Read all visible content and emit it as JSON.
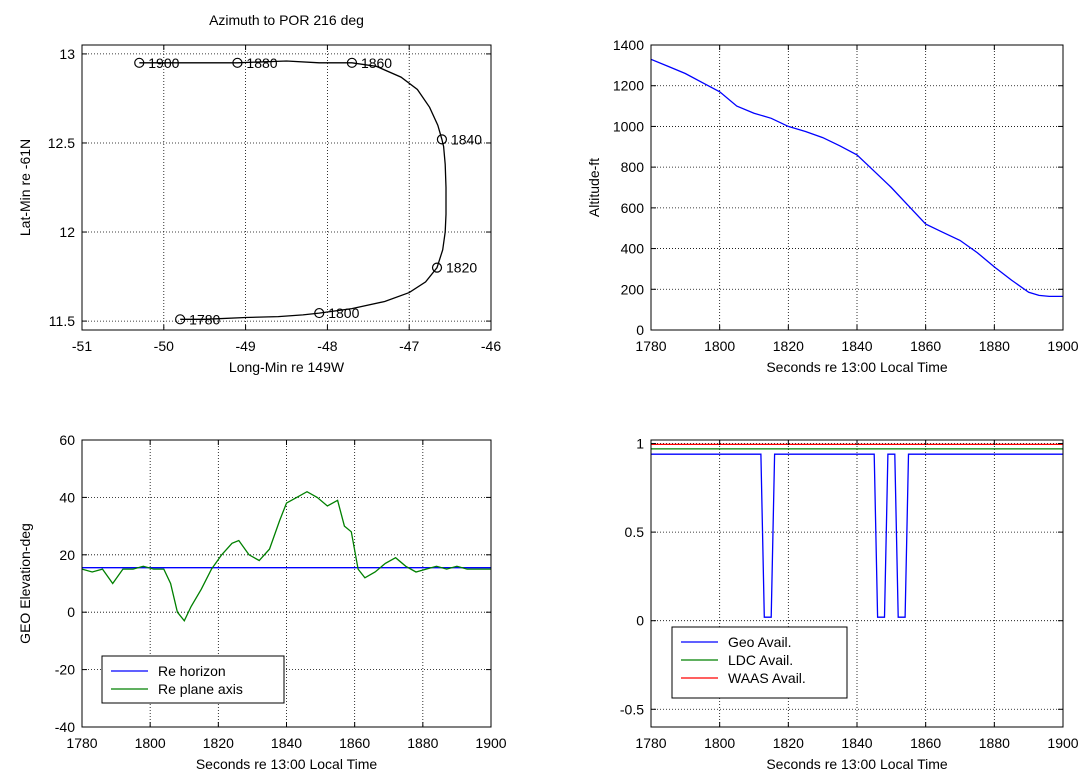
{
  "chart_data": [
    {
      "type": "line",
      "title": "Azimuth to POR 216 deg",
      "xlabel": "Long-Min re 149W",
      "ylabel": "Lat-Min re -61N",
      "xlim": [
        -51,
        -46
      ],
      "ylim": [
        11.45,
        13.05
      ],
      "xticks": [
        -51,
        -50,
        -49,
        -48,
        -47,
        -46
      ],
      "yticks": [
        11.5,
        12,
        12.5,
        13
      ],
      "xtick_labels": [
        "-51",
        "-50",
        "-49",
        "-48",
        "-47",
        "-46"
      ],
      "ytick_labels": [
        "11.5",
        "12",
        "12.5",
        "13"
      ],
      "grid": true,
      "series": [
        {
          "color": "#000000",
          "x": [
            -49.8,
            -49.5,
            -49.0,
            -48.6,
            -48.3,
            -48.1,
            -47.7,
            -47.3,
            -47.0,
            -46.8,
            -46.66,
            -46.59,
            -46.56,
            -46.55,
            -46.55,
            -46.56,
            -46.58,
            -46.6,
            -46.65,
            -46.75,
            -46.9,
            -47.1,
            -47.4,
            -47.7,
            -48.1,
            -48.5,
            -49.1,
            -49.8,
            -50.3
          ],
          "y": [
            11.51,
            11.51,
            11.52,
            11.525,
            11.535,
            11.545,
            11.57,
            11.61,
            11.66,
            11.72,
            11.8,
            11.9,
            12.0,
            12.1,
            12.25,
            12.38,
            12.48,
            12.52,
            12.6,
            12.7,
            12.8,
            12.87,
            12.93,
            12.95,
            12.95,
            12.96,
            12.95,
            12.95,
            12.95
          ]
        }
      ],
      "markers": [
        {
          "label": "1780",
          "x": -49.8,
          "y": 11.51
        },
        {
          "label": "1800",
          "x": -48.1,
          "y": 11.545
        },
        {
          "label": "1820",
          "x": -46.66,
          "y": 11.8
        },
        {
          "label": "1840",
          "x": -46.6,
          "y": 12.52
        },
        {
          "label": "1860",
          "x": -47.7,
          "y": 12.95
        },
        {
          "label": "1880",
          "x": -49.1,
          "y": 12.95
        },
        {
          "label": "1900",
          "x": -50.3,
          "y": 12.95
        }
      ]
    },
    {
      "type": "line",
      "title": "",
      "xlabel": "Seconds re 13:00 Local Time",
      "ylabel": "Altitude-ft",
      "xlim": [
        1780,
        1900
      ],
      "ylim": [
        0,
        1400
      ],
      "xticks": [
        1780,
        1800,
        1820,
        1840,
        1860,
        1880,
        1900
      ],
      "yticks": [
        0,
        200,
        400,
        600,
        800,
        1000,
        1200,
        1400
      ],
      "xtick_labels": [
        "1780",
        "1800",
        "1820",
        "1840",
        "1860",
        "1880",
        "1900"
      ],
      "ytick_labels": [
        "0",
        "200",
        "400",
        "600",
        "800",
        "1000",
        "1200",
        "1400"
      ],
      "grid": true,
      "series": [
        {
          "color": "#0000ff",
          "x": [
            1780,
            1785,
            1790,
            1795,
            1800,
            1805,
            1810,
            1815,
            1820,
            1825,
            1830,
            1835,
            1840,
            1845,
            1850,
            1855,
            1860,
            1865,
            1870,
            1875,
            1880,
            1885,
            1890,
            1893,
            1896,
            1900
          ],
          "y": [
            1330,
            1295,
            1260,
            1215,
            1170,
            1100,
            1065,
            1040,
            1000,
            975,
            945,
            905,
            860,
            780,
            700,
            610,
            520,
            480,
            440,
            380,
            310,
            245,
            185,
            170,
            165,
            165
          ]
        }
      ]
    },
    {
      "type": "line",
      "title": "",
      "xlabel": "Seconds re 13:00 Local Time",
      "ylabel": "GEO Elevation-deg",
      "xlim": [
        1780,
        1900
      ],
      "ylim": [
        -40,
        60
      ],
      "xticks": [
        1780,
        1800,
        1820,
        1840,
        1860,
        1880,
        1900
      ],
      "yticks": [
        -40,
        -20,
        0,
        20,
        40,
        60
      ],
      "xtick_labels": [
        "1780",
        "1800",
        "1820",
        "1840",
        "1860",
        "1880",
        "1900"
      ],
      "ytick_labels": [
        "-40",
        "-20",
        "0",
        "20",
        "40",
        "60"
      ],
      "grid": true,
      "legend": "bottom-left",
      "series": [
        {
          "name": "Re horizon",
          "color": "#0000ff",
          "x": [
            1780,
            1900
          ],
          "y": [
            15.5,
            15.5
          ]
        },
        {
          "name": "Re plane axis",
          "color": "#008000",
          "x": [
            1780,
            1783,
            1786,
            1789,
            1792,
            1795,
            1798,
            1801,
            1804,
            1806,
            1808,
            1810,
            1812,
            1815,
            1818,
            1821,
            1824,
            1826,
            1829,
            1832,
            1835,
            1838,
            1840,
            1843,
            1846,
            1849,
            1852,
            1855,
            1857,
            1859,
            1861,
            1863,
            1866,
            1869,
            1872,
            1875,
            1878,
            1881,
            1884,
            1887,
            1890,
            1893,
            1896,
            1900
          ],
          "y": [
            15,
            14,
            15,
            10,
            15,
            15,
            16,
            15,
            15,
            10,
            0,
            -3,
            2,
            8,
            15,
            20,
            24,
            25,
            20,
            18,
            22,
            32,
            38,
            40,
            42,
            40,
            37,
            39,
            30,
            28,
            15,
            12,
            14,
            17,
            19,
            16,
            14,
            15,
            16,
            15,
            16,
            15,
            15,
            15
          ]
        }
      ]
    },
    {
      "type": "line",
      "title": "",
      "xlabel": "Seconds re 13:00 Local Time",
      "ylabel": "",
      "xlim": [
        1780,
        1900
      ],
      "ylim": [
        -0.6,
        1.02
      ],
      "xticks": [
        1780,
        1800,
        1820,
        1840,
        1860,
        1880,
        1900
      ],
      "yticks": [
        -0.5,
        0,
        0.5,
        1
      ],
      "xtick_labels": [
        "1780",
        "1800",
        "1820",
        "1840",
        "1860",
        "1880",
        "1900"
      ],
      "ytick_labels": [
        "-0.5",
        "0",
        "0.5",
        "1"
      ],
      "grid": true,
      "legend": "bottom-left",
      "series": [
        {
          "name": "Geo Avail.",
          "color": "#0000ff",
          "x": [
            1780,
            1812,
            1813,
            1815,
            1816,
            1845,
            1846,
            1848,
            1849,
            1851,
            1852,
            1854,
            1855,
            1900
          ],
          "y": [
            0.94,
            0.94,
            0.02,
            0.02,
            0.94,
            0.94,
            0.02,
            0.02,
            0.94,
            0.94,
            0.02,
            0.02,
            0.94,
            0.94
          ]
        },
        {
          "name": "LDC Avail.",
          "color": "#008000",
          "x": [
            1780,
            1900
          ],
          "y": [
            0.97,
            0.97
          ]
        },
        {
          "name": "WAAS Avail.",
          "color": "#ff0000",
          "x": [
            1780,
            1900
          ],
          "y": [
            0.995,
            0.995
          ]
        }
      ]
    }
  ]
}
